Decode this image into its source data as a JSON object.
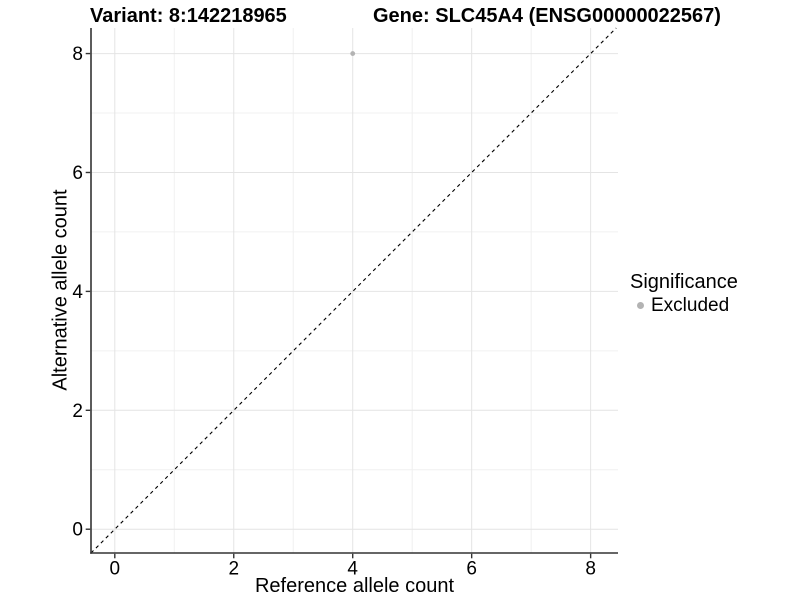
{
  "chart_data": {
    "type": "scatter",
    "title_left": "Variant: 8:142218965",
    "title_right": "Gene: SLC45A4 (ENSG00000022567)",
    "xlabel": "Reference allele count",
    "ylabel": "Alternative allele count",
    "xlim": [
      -0.4,
      8.46
    ],
    "ylim": [
      -0.4,
      8.43
    ],
    "x_ticks": [
      0,
      2,
      4,
      6,
      8
    ],
    "y_ticks": [
      0,
      2,
      4,
      6,
      8
    ],
    "x_minor_ticks": [
      1,
      3,
      5,
      7
    ],
    "y_minor_ticks": [
      1,
      3,
      5,
      7
    ],
    "grid": "major+minor",
    "points": [
      {
        "x": 4,
        "y": 8,
        "significance": "Excluded"
      }
    ],
    "reference_line": {
      "slope": 1,
      "intercept": 0,
      "style": "dashed",
      "color": "#000000"
    },
    "legend": {
      "position": "right",
      "title": "Significance",
      "items": [
        {
          "label": "Excluded",
          "color": "#b3b3b3"
        }
      ]
    },
    "colors": {
      "point": "#b3b3b3",
      "grid_major": "#e4e4e4",
      "grid_minor": "#f0f0f0",
      "axis_line": "#333333",
      "tick": "#333333",
      "text": "#000000",
      "background": "#ffffff"
    }
  }
}
